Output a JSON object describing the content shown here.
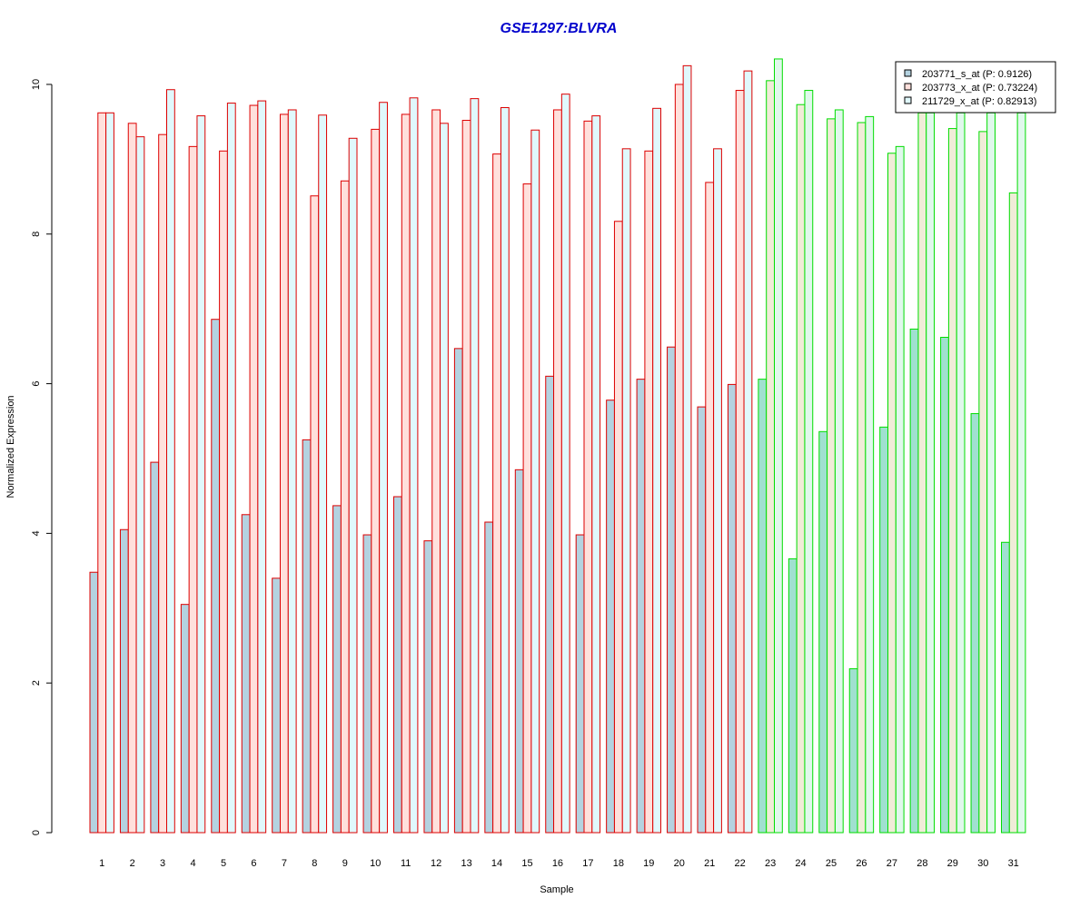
{
  "chart_data": {
    "type": "bar",
    "title": "GSE1297:BLVRA",
    "title_color": "#0000cc",
    "xlabel": "Sample",
    "ylabel": "Normalized Expression",
    "ylim": [
      0,
      10.4
    ],
    "yticks": [
      0,
      2,
      4,
      6,
      8,
      10
    ],
    "grid": false,
    "legend_position": "top-right",
    "categories": [
      "1",
      "2",
      "3",
      "4",
      "5",
      "6",
      "7",
      "8",
      "9",
      "10",
      "11",
      "12",
      "13",
      "14",
      "15",
      "16",
      "17",
      "18",
      "19",
      "20",
      "21",
      "22",
      "23",
      "24",
      "25",
      "26",
      "27",
      "28",
      "29",
      "30",
      "31"
    ],
    "series": [
      {
        "name": "203771_s_at (P: 0.9126)",
        "fill": "#b4d2e0",
        "values": [
          3.48,
          4.05,
          4.95,
          3.05,
          6.86,
          4.25,
          3.4,
          5.25,
          4.37,
          3.98,
          4.49,
          3.9,
          6.47,
          4.15,
          4.85,
          6.1,
          3.98,
          5.78,
          6.06,
          6.49,
          5.69,
          5.99,
          6.06,
          3.66,
          5.36,
          2.19,
          5.42,
          6.73,
          6.62,
          5.6,
          3.88
        ]
      },
      {
        "name": "203773_x_at (P: 0.73224)",
        "fill": "#ffe0dc",
        "values": [
          9.62,
          9.48,
          9.33,
          9.17,
          9.11,
          9.72,
          9.6,
          8.51,
          8.71,
          9.4,
          9.6,
          9.66,
          9.52,
          9.07,
          8.67,
          9.66,
          9.51,
          8.17,
          9.11,
          10.0,
          8.69,
          9.92,
          10.05,
          9.73,
          9.54,
          9.49,
          9.08,
          9.62,
          9.41,
          9.37,
          8.55
        ]
      },
      {
        "name": "211729_x_at (P: 0.82913)",
        "fill": "#e0f8fc",
        "values": [
          9.62,
          9.3,
          9.93,
          9.58,
          9.75,
          9.78,
          9.66,
          9.59,
          9.28,
          9.76,
          9.82,
          9.48,
          9.81,
          9.69,
          9.39,
          9.87,
          9.58,
          9.14,
          9.68,
          10.25,
          9.14,
          10.18,
          10.34,
          9.92,
          9.66,
          9.57,
          9.17,
          9.62,
          9.62,
          9.62,
          9.62
        ]
      }
    ],
    "groups": [
      {
        "from": 1,
        "to": 22,
        "border": "#dd0000"
      },
      {
        "from": 23,
        "to": 31,
        "border": "#00dd00"
      }
    ],
    "group_fill_tint": [
      "#b4d2e0",
      "#ffe0dc",
      "#e0f8fc"
    ],
    "group2_fill": [
      "#a0e0d0",
      "#f0ecd8",
      "#e0f8ec"
    ]
  }
}
